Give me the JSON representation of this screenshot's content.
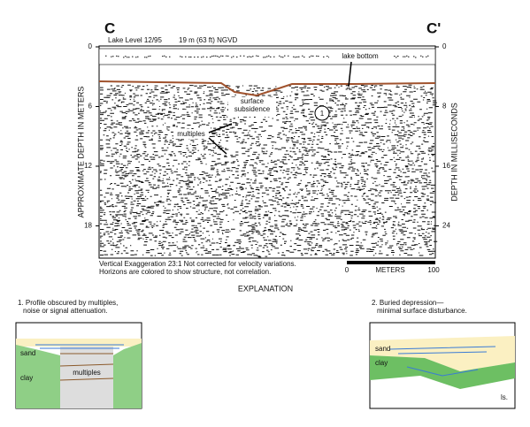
{
  "profile": {
    "label_left": "C",
    "label_right": "C'",
    "lake_level": "Lake Level 12/95",
    "elevation": "19 m (63 ft) NGVD",
    "left_axis_title": "APPROXIMATE DEPTH IN METERS",
    "right_axis_title": "DEPTH IN MILLISECONDS",
    "left_ticks": [
      "0",
      "6",
      "12",
      "18"
    ],
    "right_ticks": [
      "0",
      "8",
      "16",
      "24"
    ],
    "annotations": {
      "lake_bottom": "lake bottom",
      "subsidence": "surface\nsubsidence",
      "multiples": "multiples",
      "feature": "1"
    },
    "notes": [
      "Vertical Exaggeration 23:1    Not corrected for velocity variations.",
      "Horizons are colored to show structure, not correlation."
    ],
    "scale": {
      "ticks": [
        "0",
        "100"
      ],
      "unit": "METERS"
    }
  },
  "explanation": {
    "title": "EXPLANATION",
    "items": [
      {
        "caption": [
          "1. Profile obscured by multiples,",
          "noise or signal attenuation."
        ],
        "labels": [
          "sand",
          "clay",
          "multiples"
        ]
      },
      {
        "caption": [
          "2. Buried depression—",
          "minimal surface disturbance."
        ],
        "labels": [
          "sand",
          "clay",
          "ls."
        ]
      }
    ]
  }
}
